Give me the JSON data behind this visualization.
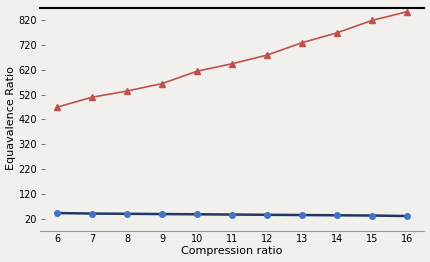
{
  "x": [
    6,
    7,
    8,
    9,
    10,
    11,
    12,
    13,
    14,
    15,
    16
  ],
  "upper_y": [
    470,
    510,
    535,
    565,
    615,
    645,
    680,
    730,
    770,
    820,
    855
  ],
  "lower_y": [
    42,
    40,
    39,
    38,
    37,
    36,
    35,
    34,
    33,
    32,
    30
  ],
  "upper_color": "#c0504d",
  "lower_color": "#4472c4",
  "line_color_lower": "#1f3864",
  "ylabel": "Equavalence Ratio",
  "xlabel": "Compression ratio",
  "ylim": [
    -30,
    880
  ],
  "xlim": [
    5.5,
    16.5
  ],
  "yticks": [
    20,
    120,
    220,
    320,
    420,
    520,
    620,
    720,
    820
  ],
  "xticks": [
    6,
    7,
    8,
    9,
    10,
    11,
    12,
    13,
    14,
    15,
    16
  ],
  "bg_color": "#f2f0ec",
  "top_line_y": 870,
  "upper_marker": "^",
  "lower_marker": "o",
  "marker_size_upper": 5,
  "marker_size_lower": 4,
  "fontsize_ticks": 7,
  "fontsize_label": 8
}
